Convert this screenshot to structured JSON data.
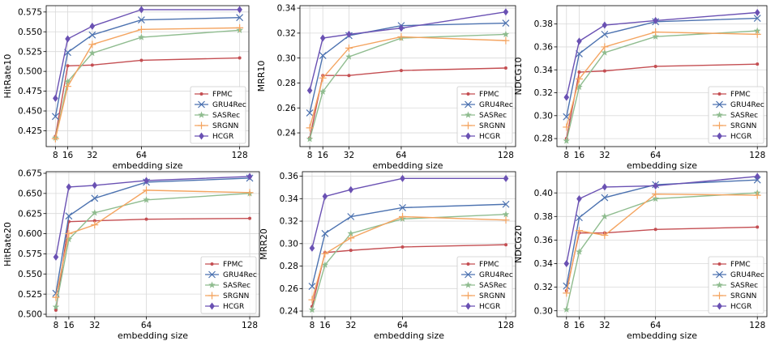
{
  "colors": {
    "FPMC": "#c44e52",
    "GRU4Rec": "#4c72b0",
    "SASRec": "#8fbc8f",
    "SRGNN": "#f4a460",
    "HCGR": "#6a51b3"
  },
  "markers": {
    "FPMC": "dot",
    "GRU4Rec": "x",
    "SASRec": "star",
    "SRGNN": "plus",
    "HCGR": "diamond"
  },
  "chart_data": [
    {
      "type": "line",
      "xlabel": "embedding size",
      "ylabel": "HitRate10",
      "x": [
        8,
        16,
        32,
        64,
        128
      ],
      "xticks": [
        "8",
        "16",
        "32",
        "64",
        "128"
      ],
      "ylim": [
        0.405,
        0.583
      ],
      "yticks": [
        "0.425",
        "0.450",
        "0.475",
        "0.500",
        "0.525",
        "0.550",
        "0.575"
      ],
      "grid": true,
      "legend": "lower-right",
      "series": [
        {
          "name": "FPMC",
          "values": [
            0.418,
            0.507,
            0.508,
            0.514,
            0.517
          ]
        },
        {
          "name": "GRU4Rec",
          "values": [
            0.443,
            0.524,
            0.546,
            0.565,
            0.568
          ]
        },
        {
          "name": "SASRec",
          "values": [
            0.416,
            0.487,
            0.523,
            0.543,
            0.552
          ]
        },
        {
          "name": "SRGNN",
          "values": [
            0.415,
            0.481,
            0.534,
            0.553,
            0.555
          ]
        },
        {
          "name": "HCGR",
          "values": [
            0.466,
            0.541,
            0.557,
            0.578,
            0.578
          ]
        }
      ]
    },
    {
      "type": "line",
      "xlabel": "embedding size",
      "ylabel": "MRR10",
      "x": [
        8,
        16,
        32,
        64,
        128
      ],
      "xticks": [
        "8",
        "16",
        "32",
        "64",
        "128"
      ],
      "ylim": [
        0.229,
        0.342
      ],
      "yticks": [
        "0.24",
        "0.26",
        "0.28",
        "0.30",
        "0.32",
        "0.34"
      ],
      "grid": true,
      "legend": "lower-right",
      "series": [
        {
          "name": "FPMC",
          "values": [
            0.236,
            0.286,
            0.286,
            0.29,
            0.292
          ]
        },
        {
          "name": "GRU4Rec",
          "values": [
            0.256,
            0.302,
            0.318,
            0.326,
            0.328
          ]
        },
        {
          "name": "SASRec",
          "values": [
            0.235,
            0.273,
            0.301,
            0.316,
            0.319
          ]
        },
        {
          "name": "SRGNN",
          "values": [
            0.244,
            0.284,
            0.308,
            0.317,
            0.314
          ]
        },
        {
          "name": "HCGR",
          "values": [
            0.274,
            0.316,
            0.319,
            0.324,
            0.337
          ]
        }
      ]
    },
    {
      "type": "line",
      "xlabel": "embedding size",
      "ylabel": "NDCG10",
      "x": [
        8,
        16,
        32,
        64,
        128
      ],
      "xticks": [
        "8",
        "16",
        "32",
        "64",
        "128"
      ],
      "ylim": [
        0.273,
        0.396
      ],
      "yticks": [
        "0.28",
        "0.30",
        "0.32",
        "0.34",
        "0.36",
        "0.38"
      ],
      "grid": true,
      "legend": "lower-right",
      "series": [
        {
          "name": "FPMC",
          "values": [
            0.28,
            0.338,
            0.339,
            0.343,
            0.345
          ]
        },
        {
          "name": "GRU4Rec",
          "values": [
            0.299,
            0.354,
            0.371,
            0.382,
            0.385
          ]
        },
        {
          "name": "SASRec",
          "values": [
            0.278,
            0.325,
            0.355,
            0.369,
            0.374
          ]
        },
        {
          "name": "SRGNN",
          "values": [
            0.29,
            0.332,
            0.36,
            0.373,
            0.371
          ]
        },
        {
          "name": "HCGR",
          "values": [
            0.316,
            0.365,
            0.379,
            0.383,
            0.39
          ]
        }
      ]
    },
    {
      "type": "line",
      "xlabel": "embedding size",
      "ylabel": "HitRate20",
      "x": [
        8,
        16,
        32,
        64,
        128
      ],
      "xticks": [
        "8",
        "16",
        "32",
        "64",
        "128"
      ],
      "ylim": [
        0.497,
        0.677
      ],
      "yticks": [
        "0.500",
        "0.525",
        "0.550",
        "0.575",
        "0.600",
        "0.625",
        "0.650",
        "0.675"
      ],
      "grid": true,
      "legend": "lower-right",
      "series": [
        {
          "name": "FPMC",
          "values": [
            0.505,
            0.615,
            0.616,
            0.618,
            0.619
          ]
        },
        {
          "name": "GRU4Rec",
          "values": [
            0.526,
            0.622,
            0.644,
            0.664,
            0.669
          ]
        },
        {
          "name": "SASRec",
          "values": [
            0.509,
            0.593,
            0.626,
            0.642,
            0.65
          ]
        },
        {
          "name": "SRGNN",
          "values": [
            0.521,
            0.6,
            0.611,
            0.654,
            0.651
          ]
        },
        {
          "name": "HCGR",
          "values": [
            0.571,
            0.658,
            0.66,
            0.666,
            0.671
          ]
        }
      ]
    },
    {
      "type": "line",
      "xlabel": "embedding size",
      "ylabel": "MRR20",
      "x": [
        8,
        16,
        32,
        64,
        128
      ],
      "xticks": [
        "8",
        "16",
        "32",
        "64",
        "128"
      ],
      "ylim": [
        0.235,
        0.364
      ],
      "yticks": [
        "0.24",
        "0.26",
        "0.28",
        "0.30",
        "0.32",
        "0.34",
        "0.36"
      ],
      "grid": true,
      "legend": "lower-right",
      "series": [
        {
          "name": "FPMC",
          "values": [
            0.244,
            0.292,
            0.294,
            0.297,
            0.299
          ]
        },
        {
          "name": "GRU4Rec",
          "values": [
            0.262,
            0.309,
            0.324,
            0.332,
            0.335
          ]
        },
        {
          "name": "SASRec",
          "values": [
            0.241,
            0.281,
            0.309,
            0.322,
            0.326
          ]
        },
        {
          "name": "SRGNN",
          "values": [
            0.25,
            0.291,
            0.305,
            0.324,
            0.321
          ]
        },
        {
          "name": "HCGR",
          "values": [
            0.296,
            0.342,
            0.348,
            0.358,
            0.358
          ]
        }
      ]
    },
    {
      "type": "line",
      "xlabel": "embedding size",
      "ylabel": "NDCG20",
      "x": [
        8,
        16,
        32,
        64,
        128
      ],
      "xticks": [
        "8",
        "16",
        "32",
        "64",
        "128"
      ],
      "ylim": [
        0.295,
        0.418
      ],
      "yticks": [
        "0.30",
        "0.32",
        "0.34",
        "0.36",
        "0.38",
        "0.40"
      ],
      "grid": true,
      "legend": "lower-right",
      "series": [
        {
          "name": "FPMC",
          "values": [
            0.317,
            0.366,
            0.366,
            0.369,
            0.371
          ]
        },
        {
          "name": "GRU4Rec",
          "values": [
            0.321,
            0.379,
            0.396,
            0.407,
            0.411
          ]
        },
        {
          "name": "SASRec",
          "values": [
            0.301,
            0.35,
            0.38,
            0.395,
            0.4
          ]
        },
        {
          "name": "SRGNN",
          "values": [
            0.315,
            0.368,
            0.364,
            0.399,
            0.398
          ]
        },
        {
          "name": "HCGR",
          "values": [
            0.34,
            0.395,
            0.405,
            0.406,
            0.414
          ]
        }
      ]
    }
  ]
}
